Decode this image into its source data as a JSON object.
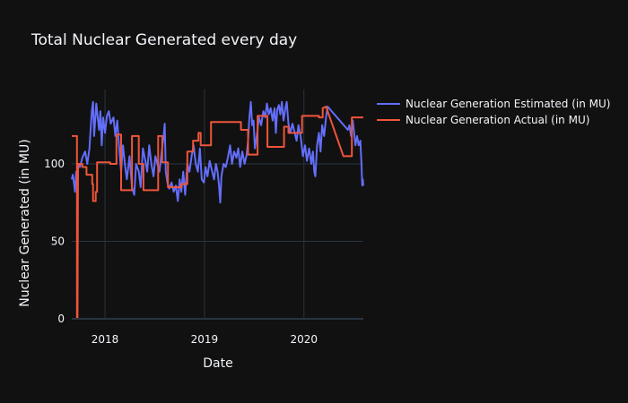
{
  "chart_data": {
    "type": "line",
    "title": "Total Nuclear Generated every day",
    "xlabel": "Date",
    "ylabel": "Nuclear Generated (in MU)",
    "xlim": [
      "2017-09-01",
      "2020-08-06"
    ],
    "ylim": [
      0,
      148
    ],
    "x_ticks": [
      "2018",
      "2019",
      "2020"
    ],
    "y_ticks": [
      0,
      50,
      100
    ],
    "grid": true,
    "legend_position": "top-right",
    "colors": {
      "background": "#111111",
      "grid": "#283442",
      "text": "#f2f5fa"
    },
    "series": [
      {
        "name": "Nuclear Generation Estimated (in MU)",
        "color": "#636efa",
        "points": [
          [
            "2017-09-01",
            90
          ],
          [
            "2017-09-05",
            93
          ],
          [
            "2017-09-09",
            88
          ],
          [
            "2017-09-13",
            82
          ],
          [
            "2017-09-17",
            95
          ],
          [
            "2017-09-21",
            85
          ],
          [
            "2017-09-25",
            100
          ],
          [
            "2017-10-01",
            98
          ],
          [
            "2017-10-10",
            104
          ],
          [
            "2017-10-20",
            108
          ],
          [
            "2017-10-28",
            100
          ],
          [
            "2017-11-05",
            110
          ],
          [
            "2017-11-10",
            125
          ],
          [
            "2017-11-14",
            135
          ],
          [
            "2017-11-18",
            140
          ],
          [
            "2017-11-22",
            118
          ],
          [
            "2017-11-26",
            128
          ],
          [
            "2017-11-30",
            139
          ],
          [
            "2017-12-05",
            130
          ],
          [
            "2017-12-10",
            122
          ],
          [
            "2017-12-15",
            134
          ],
          [
            "2017-12-20",
            112
          ],
          [
            "2017-12-25",
            130
          ],
          [
            "2018-01-01",
            120
          ],
          [
            "2018-01-08",
            131
          ],
          [
            "2018-01-15",
            134
          ],
          [
            "2018-01-22",
            126
          ],
          [
            "2018-02-01",
            130
          ],
          [
            "2018-02-08",
            118
          ],
          [
            "2018-02-15",
            128
          ],
          [
            "2018-02-22",
            110
          ],
          [
            "2018-03-01",
            95
          ],
          [
            "2018-03-08",
            112
          ],
          [
            "2018-03-15",
            100
          ],
          [
            "2018-03-22",
            90
          ],
          [
            "2018-04-01",
            105
          ],
          [
            "2018-04-10",
            85
          ],
          [
            "2018-04-18",
            80
          ],
          [
            "2018-04-25",
            100
          ],
          [
            "2018-05-05",
            95
          ],
          [
            "2018-05-12",
            85
          ],
          [
            "2018-05-20",
            110
          ],
          [
            "2018-05-28",
            103
          ],
          [
            "2018-06-05",
            95
          ],
          [
            "2018-06-12",
            112
          ],
          [
            "2018-06-20",
            100
          ],
          [
            "2018-06-28",
            92
          ],
          [
            "2018-07-05",
            105
          ],
          [
            "2018-07-12",
            100
          ],
          [
            "2018-07-20",
            95
          ],
          [
            "2018-07-28",
            108
          ],
          [
            "2018-08-04",
            118
          ],
          [
            "2018-08-08",
            126
          ],
          [
            "2018-08-12",
            95
          ],
          [
            "2018-08-18",
            88
          ],
          [
            "2018-08-25",
            84
          ],
          [
            "2018-09-02",
            88
          ],
          [
            "2018-09-10",
            82
          ],
          [
            "2018-09-18",
            86
          ],
          [
            "2018-09-25",
            76
          ],
          [
            "2018-10-02",
            90
          ],
          [
            "2018-10-08",
            82
          ],
          [
            "2018-10-15",
            95
          ],
          [
            "2018-10-22",
            80
          ],
          [
            "2018-10-30",
            100
          ],
          [
            "2018-11-07",
            95
          ],
          [
            "2018-11-15",
            105
          ],
          [
            "2018-11-22",
            112
          ],
          [
            "2018-11-30",
            100
          ],
          [
            "2018-12-08",
            95
          ],
          [
            "2018-12-15",
            110
          ],
          [
            "2018-12-22",
            90
          ],
          [
            "2018-12-30",
            88
          ],
          [
            "2019-01-05",
            98
          ],
          [
            "2019-01-12",
            92
          ],
          [
            "2019-01-20",
            102
          ],
          [
            "2019-01-28",
            96
          ],
          [
            "2019-02-05",
            90
          ],
          [
            "2019-02-12",
            100
          ],
          [
            "2019-02-18",
            95
          ],
          [
            "2019-02-24",
            85
          ],
          [
            "2019-02-28",
            75
          ],
          [
            "2019-03-04",
            92
          ],
          [
            "2019-03-12",
            100
          ],
          [
            "2019-03-20",
            98
          ],
          [
            "2019-03-28",
            104
          ],
          [
            "2019-04-05",
            112
          ],
          [
            "2019-04-12",
            100
          ],
          [
            "2019-04-20",
            108
          ],
          [
            "2019-04-28",
            104
          ],
          [
            "2019-05-05",
            110
          ],
          [
            "2019-05-12",
            98
          ],
          [
            "2019-05-20",
            108
          ],
          [
            "2019-05-28",
            100
          ],
          [
            "2019-06-05",
            106
          ],
          [
            "2019-06-10",
            115
          ],
          [
            "2019-06-15",
            130
          ],
          [
            "2019-06-20",
            140
          ],
          [
            "2019-06-25",
            125
          ],
          [
            "2019-06-30",
            128
          ],
          [
            "2019-07-05",
            110
          ],
          [
            "2019-07-12",
            118
          ],
          [
            "2019-07-20",
            130
          ],
          [
            "2019-07-28",
            125
          ],
          [
            "2019-08-05",
            134
          ],
          [
            "2019-08-12",
            130
          ],
          [
            "2019-08-18",
            139
          ],
          [
            "2019-08-25",
            132
          ],
          [
            "2019-09-01",
            136
          ],
          [
            "2019-09-08",
            128
          ],
          [
            "2019-09-15",
            136
          ],
          [
            "2019-09-20",
            120
          ],
          [
            "2019-09-25",
            135
          ],
          [
            "2019-10-01",
            138
          ],
          [
            "2019-10-06",
            132
          ],
          [
            "2019-10-12",
            140
          ],
          [
            "2019-10-18",
            128
          ],
          [
            "2019-10-25",
            136
          ],
          [
            "2019-10-30",
            140
          ],
          [
            "2019-11-05",
            126
          ],
          [
            "2019-11-12",
            120
          ],
          [
            "2019-11-20",
            126
          ],
          [
            "2019-11-28",
            120
          ],
          [
            "2019-12-05",
            115
          ],
          [
            "2019-12-12",
            125
          ],
          [
            "2019-12-20",
            118
          ],
          [
            "2019-12-28",
            105
          ],
          [
            "2020-01-05",
            112
          ],
          [
            "2020-01-12",
            102
          ],
          [
            "2020-01-20",
            110
          ],
          [
            "2020-01-28",
            100
          ],
          [
            "2020-02-03",
            108
          ],
          [
            "2020-02-08",
            95
          ],
          [
            "2020-02-12",
            92
          ],
          [
            "2020-02-18",
            112
          ],
          [
            "2020-02-25",
            120
          ],
          [
            "2020-03-02",
            108
          ],
          [
            "2020-03-08",
            125
          ],
          [
            "2020-03-15",
            118
          ],
          [
            "2020-03-22",
            130
          ],
          [
            "2020-03-28",
            137
          ],
          [
            "2020-06-10",
            122
          ],
          [
            "2020-06-16",
            125
          ],
          [
            "2020-06-22",
            118
          ],
          [
            "2020-06-28",
            128
          ],
          [
            "2020-07-03",
            120
          ],
          [
            "2020-07-08",
            112
          ],
          [
            "2020-07-14",
            118
          ],
          [
            "2020-07-20",
            112
          ],
          [
            "2020-07-26",
            115
          ],
          [
            "2020-07-30",
            100
          ],
          [
            "2020-08-02",
            86
          ],
          [
            "2020-08-04",
            90
          ],
          [
            "2020-08-06",
            86
          ]
        ]
      },
      {
        "name": "Nuclear Generation Actual (in MU)",
        "color": "#ef553b",
        "points": [
          [
            "2017-09-01",
            118
          ],
          [
            "2017-09-20",
            118
          ],
          [
            "2017-09-20",
            0
          ],
          [
            "2017-09-22",
            0
          ],
          [
            "2017-09-24",
            100
          ],
          [
            "2017-10-10",
            100
          ],
          [
            "2017-10-10",
            98
          ],
          [
            "2017-10-25",
            98
          ],
          [
            "2017-10-25",
            93
          ],
          [
            "2017-11-15",
            93
          ],
          [
            "2017-11-15",
            87
          ],
          [
            "2017-11-18",
            87
          ],
          [
            "2017-11-18",
            76
          ],
          [
            "2017-11-28",
            76
          ],
          [
            "2017-11-28",
            82
          ],
          [
            "2017-12-03",
            82
          ],
          [
            "2017-12-03",
            101
          ],
          [
            "2018-01-20",
            101
          ],
          [
            "2018-01-20",
            100
          ],
          [
            "2018-02-12",
            100
          ],
          [
            "2018-02-12",
            119
          ],
          [
            "2018-03-01",
            119
          ],
          [
            "2018-03-01",
            83
          ],
          [
            "2018-04-10",
            83
          ],
          [
            "2018-04-10",
            118
          ],
          [
            "2018-05-05",
            118
          ],
          [
            "2018-05-05",
            100
          ],
          [
            "2018-05-22",
            100
          ],
          [
            "2018-05-22",
            83
          ],
          [
            "2018-07-15",
            83
          ],
          [
            "2018-07-15",
            118
          ],
          [
            "2018-07-30",
            118
          ],
          [
            "2018-07-30",
            101
          ],
          [
            "2018-08-20",
            101
          ],
          [
            "2018-08-20",
            85
          ],
          [
            "2018-10-08",
            85
          ],
          [
            "2018-10-08",
            87
          ],
          [
            "2018-10-30",
            87
          ],
          [
            "2018-10-30",
            108
          ],
          [
            "2018-11-20",
            108
          ],
          [
            "2018-11-20",
            115
          ],
          [
            "2018-12-10",
            115
          ],
          [
            "2018-12-10",
            120
          ],
          [
            "2018-12-18",
            120
          ],
          [
            "2018-12-18",
            112
          ],
          [
            "2019-01-25",
            112
          ],
          [
            "2019-01-25",
            127
          ],
          [
            "2019-05-15",
            127
          ],
          [
            "2019-05-15",
            122
          ],
          [
            "2019-06-10",
            122
          ],
          [
            "2019-06-10",
            106
          ],
          [
            "2019-07-15",
            106
          ],
          [
            "2019-07-15",
            131
          ],
          [
            "2019-08-20",
            131
          ],
          [
            "2019-08-20",
            111
          ],
          [
            "2019-10-20",
            111
          ],
          [
            "2019-10-20",
            124
          ],
          [
            "2019-11-05",
            124
          ],
          [
            "2019-11-05",
            120
          ],
          [
            "2019-12-25",
            120
          ],
          [
            "2019-12-25",
            131
          ],
          [
            "2020-02-25",
            131
          ],
          [
            "2020-02-25",
            130
          ],
          [
            "2020-03-10",
            130
          ],
          [
            "2020-03-10",
            136
          ],
          [
            "2020-03-22",
            137
          ],
          [
            "2020-05-25",
            105
          ],
          [
            "2020-06-25",
            105
          ],
          [
            "2020-06-25",
            130
          ],
          [
            "2020-08-06",
            130
          ]
        ]
      }
    ]
  }
}
